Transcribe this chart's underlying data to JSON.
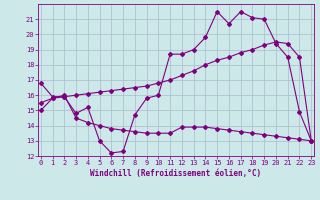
{
  "line1_x": [
    0,
    1,
    2,
    3,
    4,
    5,
    6,
    7,
    8,
    9,
    10,
    11,
    12,
    13,
    14,
    15,
    16,
    17,
    18,
    19,
    20,
    21,
    22,
    23
  ],
  "line1_y": [
    16.8,
    15.9,
    15.9,
    14.8,
    15.2,
    13.0,
    12.2,
    12.3,
    14.7,
    15.8,
    16.0,
    18.7,
    18.7,
    19.0,
    19.8,
    21.5,
    20.7,
    21.5,
    21.1,
    21.0,
    19.4,
    18.5,
    14.9,
    13.0
  ],
  "line2_x": [
    0,
    1,
    2,
    3,
    4,
    5,
    6,
    7,
    8,
    9,
    10,
    11,
    12,
    13,
    14,
    15,
    16,
    17,
    18,
    19,
    20,
    21,
    22,
    23
  ],
  "line2_y": [
    15.5,
    15.8,
    15.9,
    16.0,
    16.1,
    16.2,
    16.3,
    16.4,
    16.5,
    16.6,
    16.8,
    17.0,
    17.3,
    17.6,
    18.0,
    18.3,
    18.5,
    18.8,
    19.0,
    19.3,
    19.5,
    19.4,
    18.5,
    13.0
  ],
  "line3_x": [
    0,
    1,
    2,
    3,
    4,
    5,
    6,
    7,
    8,
    9,
    10,
    11,
    12,
    13,
    14,
    15,
    16,
    17,
    18,
    19,
    20,
    21,
    22,
    23
  ],
  "line3_y": [
    15.0,
    15.8,
    16.0,
    14.5,
    14.2,
    14.0,
    13.8,
    13.7,
    13.6,
    13.5,
    13.5,
    13.5,
    13.9,
    13.9,
    13.9,
    13.8,
    13.7,
    13.6,
    13.5,
    13.4,
    13.3,
    13.2,
    13.1,
    13.0
  ],
  "color": "#800080",
  "bg_color": "#cce8e8",
  "grid_color": "#aabbcc",
  "xlabel": "Windchill (Refroidissement éolien,°C)",
  "xlim": [
    0,
    23
  ],
  "ylim": [
    12,
    22
  ],
  "xticks": [
    0,
    1,
    2,
    3,
    4,
    5,
    6,
    7,
    8,
    9,
    10,
    11,
    12,
    13,
    14,
    15,
    16,
    17,
    18,
    19,
    20,
    21,
    22,
    23
  ],
  "yticks": [
    12,
    13,
    14,
    15,
    16,
    17,
    18,
    19,
    20,
    21
  ],
  "marker": "D",
  "markersize": 2.0,
  "linewidth": 0.8,
  "tick_fontsize": 5.0,
  "xlabel_fontsize": 5.5
}
